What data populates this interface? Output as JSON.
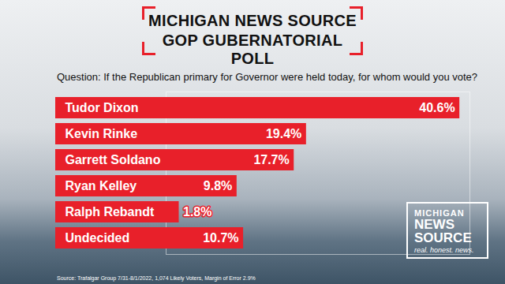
{
  "chart_data": {
    "type": "bar",
    "title": "MICHIGAN NEWS SOURCE",
    "subtitle": "GOP GUBERNATORIAL POLL",
    "annotations": [
      "Question: If the Republican primary for Governor were held today, for whom would you vote?",
      "Source: Trafalgar Group 7/31-8/1/2022, 1,074 Likely Voters, Margin of Error 2.9%",
      "MICHIGAN",
      "NEWS SOURCE",
      "real. honest. news."
    ],
    "categories": [
      "Tudor Dixon",
      "Kevin Rinke",
      "Garrett Soldano",
      "Ryan Kelley",
      "Ralph Rebandt",
      "Undecided"
    ],
    "values": [
      40.6,
      19.4,
      17.7,
      9.8,
      1.8,
      10.7
    ],
    "value_labels": [
      "40.6%",
      "19.4%",
      "17.7%",
      "9.8%",
      "1.8%",
      "10.7%"
    ],
    "color": "#e8202a",
    "orientation": "horizontal",
    "xlim": [
      0,
      42
    ],
    "xticks": [],
    "grid": false,
    "data_labels": true,
    "tick_labels": false
  }
}
